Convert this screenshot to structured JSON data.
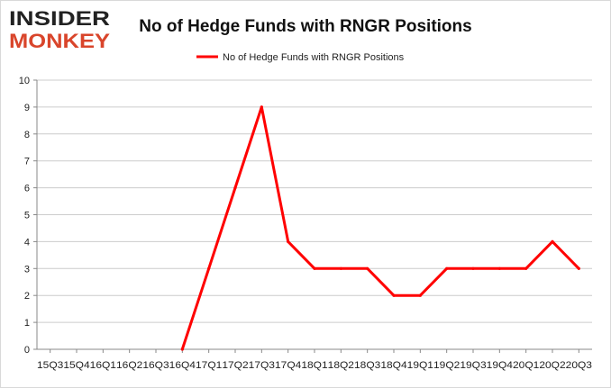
{
  "brand": {
    "line1": "INSIDER",
    "line2": "MONKEY",
    "color_dark": "#222222",
    "color_accent": "#d9452b"
  },
  "chart_data": {
    "type": "line",
    "title": "No of Hedge Funds with RNGR Positions",
    "xlabel": "",
    "ylabel": "",
    "legend_position": "top-center",
    "grid": true,
    "ylim": [
      0,
      10
    ],
    "yticks": [
      0,
      1,
      2,
      3,
      4,
      5,
      6,
      7,
      8,
      9,
      10
    ],
    "categories": [
      "15Q3",
      "15Q4",
      "16Q1",
      "16Q2",
      "16Q3",
      "16Q4",
      "17Q1",
      "17Q2",
      "17Q3",
      "17Q4",
      "18Q1",
      "18Q2",
      "18Q3",
      "18Q4",
      "19Q1",
      "19Q2",
      "19Q3",
      "19Q4",
      "20Q1",
      "20Q2",
      "20Q3"
    ],
    "series": [
      {
        "name": "No of Hedge Funds with RNGR Positions",
        "color": "#ff0000",
        "values": [
          null,
          null,
          null,
          null,
          null,
          0,
          3,
          6,
          9,
          4,
          3,
          3,
          3,
          2,
          2,
          3,
          3,
          3,
          3,
          4,
          3
        ]
      }
    ]
  }
}
